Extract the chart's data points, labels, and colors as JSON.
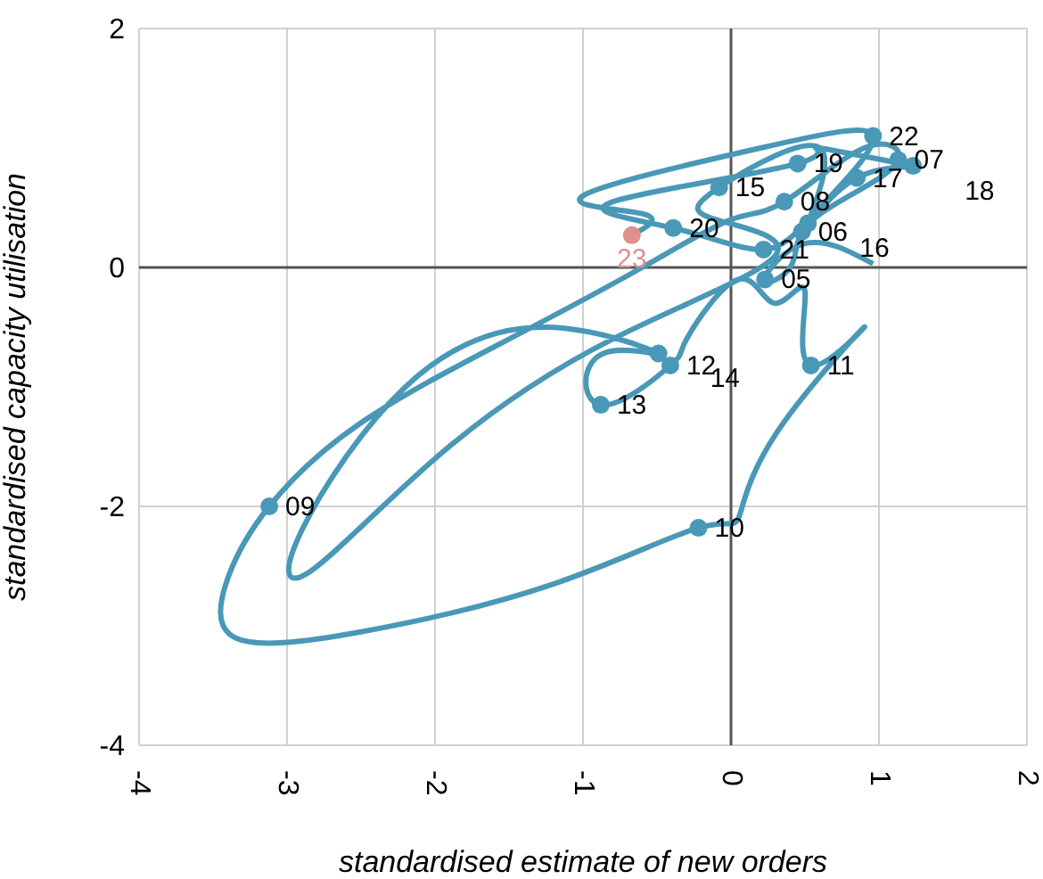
{
  "chart_data": {
    "type": "line",
    "xlabel": "standardised estimate of new orders",
    "ylabel": "standardised capacity utilisation",
    "xlim": [
      -4,
      2
    ],
    "ylim": [
      -4,
      2
    ],
    "xticks": [
      -4,
      -3,
      -2,
      -1,
      0,
      1,
      2
    ],
    "yticks": [
      -4,
      -2,
      0,
      2
    ],
    "grid": true,
    "series": [
      {
        "type": "line",
        "color": "#4a98b8",
        "x": [
          0.96,
          0.5,
          0.23,
          0.4,
          0.48,
          0.8,
          1.13,
          0.9,
          0.36,
          0,
          -0.6,
          -1.5,
          -2.5,
          -3.12,
          -3.4,
          -3.35,
          -2.5,
          -1.2,
          -0.22,
          0.05,
          0.3,
          0.9,
          0.54,
          0.5,
          0.3,
          0.05,
          -0.3,
          -0.41,
          -0.88,
          -0.88,
          -0.49,
          -1.25,
          -2.2,
          -2.9,
          -2.85,
          -2.0,
          -0.8,
          0.3,
          -0.1,
          -0.08,
          0.6,
          0.52,
          0.85,
          1.23,
          0.6,
          0.45,
          -0.8,
          -0.39,
          0.22,
          0.6,
          0.96,
          0.2,
          -1.0,
          -0.6,
          -0.67
        ],
        "values": [
          0.03,
          0.2,
          -0.1,
          0.0,
          0.3,
          0.6,
          0.9,
          1.0,
          0.55,
          0.4,
          0.0,
          -0.6,
          -1.3,
          -2.0,
          -2.6,
          -3.1,
          -3.05,
          -2.65,
          -2.18,
          -2.1,
          -1.4,
          -0.5,
          -0.82,
          -0.2,
          -0.3,
          -0.1,
          -0.6,
          -0.82,
          -1.15,
          -0.73,
          -0.72,
          -0.5,
          -1.0,
          -2.2,
          -2.55,
          -1.6,
          -0.6,
          0.1,
          0.4,
          0.67,
          1.0,
          0.37,
          0.75,
          0.85,
          1.0,
          0.87,
          0.55,
          0.33,
          0.15,
          0.5,
          1.1,
          1.0,
          0.6,
          0.45,
          0.27
        ]
      },
      {
        "type": "scatter",
        "color": "#4a98b8",
        "colors": [
          "#4a98b8",
          "#4a98b8",
          "#4a98b8",
          "#4a98b8",
          "#4a98b8",
          "#4a98b8",
          "#4a98b8",
          "#4a98b8",
          "#4a98b8",
          "#4a98b8",
          "#4a98b8",
          "#4a98b8",
          "#4a98b8",
          "#4a98b8",
          "#4a98b8",
          "#4a98b8",
          "#4a98b8",
          "#4a98b8",
          "#e08f8f"
        ],
        "x": [
          0.23,
          0.48,
          1.13,
          0.36,
          -3.12,
          -0.22,
          0.54,
          -0.41,
          -0.88,
          -0.49,
          -0.08,
          0.52,
          0.85,
          1.23,
          0.45,
          -0.39,
          0.22,
          0.96,
          -0.67
        ],
        "values": [
          -0.1,
          0.3,
          0.9,
          0.55,
          -2.0,
          -2.18,
          -0.82,
          -0.82,
          -1.15,
          -0.72,
          0.67,
          0.37,
          0.75,
          0.85,
          0.87,
          0.33,
          0.15,
          1.1,
          0.27
        ]
      }
    ],
    "annotations": [
      {
        "text": "05",
        "x": 0.23,
        "y": -0.1
      },
      {
        "text": "06",
        "x": 0.48,
        "y": 0.3
      },
      {
        "text": "07",
        "x": 1.13,
        "y": 0.9
      },
      {
        "text": "08",
        "x": 0.36,
        "y": 0.55
      },
      {
        "text": "09",
        "x": -3.12,
        "y": -2.0
      },
      {
        "text": "10",
        "x": -0.22,
        "y": -2.18
      },
      {
        "text": "11",
        "x": 0.54,
        "y": -0.82
      },
      {
        "text": "12",
        "x": -0.41,
        "y": -0.82
      },
      {
        "text": "13",
        "x": -0.88,
        "y": -1.15
      },
      {
        "text": "14",
        "x": -0.49,
        "y": -0.72
      },
      {
        "text": "15",
        "x": -0.08,
        "y": 0.67
      },
      {
        "text": "16",
        "x": 0.52,
        "y": 0.37
      },
      {
        "text": "17",
        "x": 0.85,
        "y": 0.75
      },
      {
        "text": "18",
        "x": 1.23,
        "y": 0.85
      },
      {
        "text": "19",
        "x": 0.45,
        "y": 0.87
      },
      {
        "text": "20",
        "x": -0.39,
        "y": 0.33
      },
      {
        "text": "21",
        "x": 0.22,
        "y": 0.15
      },
      {
        "text": "22",
        "x": 0.96,
        "y": 1.1
      },
      {
        "text": "23",
        "x": -0.67,
        "y": 0.27
      }
    ]
  }
}
